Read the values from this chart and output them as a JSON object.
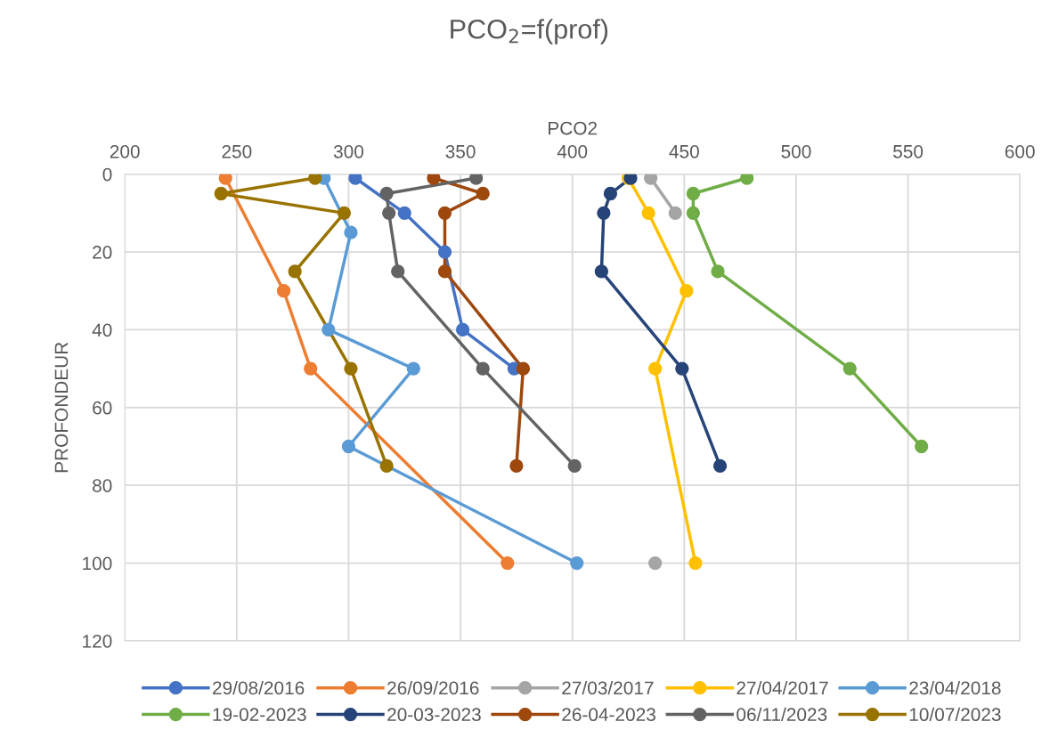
{
  "chart_data": {
    "type": "line",
    "title": "PCO$_{2}$=f(prof)",
    "xlabel": "PCO2",
    "ylabel": "PROFONDEUR",
    "xlim": [
      200,
      600
    ],
    "xticks": [
      200,
      250,
      300,
      350,
      400,
      450,
      500,
      550,
      600
    ],
    "ylim": [
      120,
      0
    ],
    "yticks": [
      0,
      20,
      40,
      60,
      80,
      100,
      120
    ],
    "grid": true,
    "legend": "bottom",
    "marker": "circle",
    "line_style": "solid",
    "series": [
      {
        "name": "29/08/2016",
        "color": "#4472c4",
        "x": [
          303,
          325,
          343,
          351,
          374
        ],
        "values": [
          1,
          10,
          20,
          40,
          50
        ]
      },
      {
        "name": "26/09/2016",
        "color": "#ed7d31",
        "x": [
          245,
          271,
          283,
          371
        ],
        "values": [
          1,
          30,
          50,
          100
        ]
      },
      {
        "name": "27/03/2017",
        "color": "#a5a5a5",
        "x": [
          435,
          446,
          null,
          437
        ],
        "values": [
          1,
          10,
          null,
          100
        ]
      },
      {
        "name": "27/04/2017",
        "color": "#ffc000",
        "x": [
          425,
          434,
          451,
          437,
          455
        ],
        "values": [
          1,
          10,
          30,
          50,
          100
        ]
      },
      {
        "name": "23/04/2018",
        "color": "#5b9bd5",
        "x": [
          289,
          301,
          291,
          329,
          300,
          402
        ],
        "values": [
          1,
          15,
          40,
          50,
          70,
          100
        ]
      },
      {
        "name": "19-02-2023",
        "color": "#70ad47",
        "x": [
          478,
          454,
          454,
          465,
          524,
          556
        ],
        "values": [
          1,
          5,
          10,
          25,
          50,
          70
        ]
      },
      {
        "name": "20-03-2023",
        "color": "#264478",
        "x": [
          426,
          417,
          414,
          413,
          449,
          466
        ],
        "values": [
          1,
          5,
          10,
          25,
          50,
          75
        ]
      },
      {
        "name": "26-04-2023",
        "color": "#9e480e",
        "x": [
          338,
          360,
          343,
          343,
          378,
          375
        ],
        "values": [
          1,
          5,
          10,
          25,
          50,
          75
        ]
      },
      {
        "name": "06/11/2023",
        "color": "#636363",
        "x": [
          357,
          317,
          318,
          322,
          360,
          401
        ],
        "values": [
          1,
          5,
          10,
          25,
          50,
          75
        ]
      },
      {
        "name": "10/07/2023",
        "color": "#997300",
        "x": [
          285,
          243,
          298,
          276,
          301,
          317
        ],
        "values": [
          1,
          5,
          10,
          25,
          50,
          75
        ]
      }
    ]
  }
}
